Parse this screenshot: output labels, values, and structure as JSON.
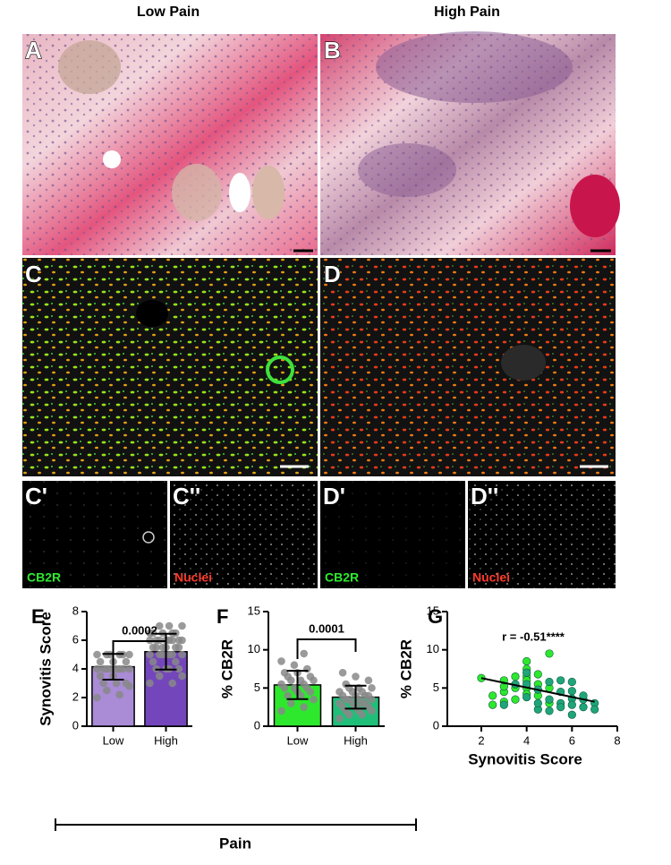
{
  "column_titles": [
    "Low Pain",
    "High Pain"
  ],
  "image_panels": [
    {
      "label": "A"
    },
    {
      "label": "B"
    },
    {
      "label": "C"
    },
    {
      "label": "D"
    },
    {
      "label": "C'",
      "channel": "CB2R"
    },
    {
      "label": "C''",
      "channel": "Nuclei"
    },
    {
      "label": "D'",
      "channel": "CB2R"
    },
    {
      "label": "D''",
      "channel": "Nuclei"
    }
  ],
  "group_label": "Pain",
  "chart_data": [
    {
      "type": "bar",
      "panel": "E",
      "ylabel": "Synovitis Score",
      "categories": [
        "Low",
        "High"
      ],
      "values": [
        4.15,
        5.2
      ],
      "errors": [
        0.9,
        1.25
      ],
      "colors": [
        "#a98bd6",
        "#7446bb"
      ],
      "points": [
        [
          2,
          2.2,
          2.5,
          2.8,
          3,
          3,
          3,
          3.5,
          3.5,
          4,
          4,
          4,
          4,
          4,
          4,
          4,
          4,
          4.5,
          4.5,
          4.5,
          5,
          5,
          5,
          5,
          5,
          5
        ],
        [
          3,
          3,
          3.5,
          3.5,
          4,
          4,
          4,
          4,
          4.5,
          4.5,
          5,
          5,
          5,
          5,
          5,
          5,
          5.5,
          5.5,
          5.5,
          5.5,
          5.5,
          5.5,
          6,
          6,
          6,
          6,
          6,
          6,
          6,
          6,
          6.5,
          6.5,
          6.5,
          6.5,
          6.5,
          7,
          7,
          7
        ]
      ],
      "ylim": [
        0,
        8
      ],
      "yticks": [
        0,
        2,
        4,
        6,
        8
      ],
      "annotation": "0.0002"
    },
    {
      "type": "bar",
      "panel": "F",
      "ylabel": "% CB2R",
      "categories": [
        "Low",
        "High"
      ],
      "values": [
        5.4,
        3.8
      ],
      "errors": [
        1.85,
        1.5
      ],
      "colors": [
        "#2ee82e",
        "#1fbf7a"
      ],
      "points": [
        [
          2,
          2.5,
          3,
          3.5,
          4,
          4,
          4.5,
          4.5,
          5,
          5,
          5,
          5.5,
          5.5,
          6,
          6,
          6,
          6.5,
          6.5,
          7,
          7,
          7.5,
          8,
          8.5,
          9.5
        ],
        [
          1,
          1.5,
          1.5,
          2,
          2,
          2,
          2.5,
          2.5,
          2.5,
          3,
          3,
          3,
          3,
          3.5,
          3.5,
          3.5,
          3.5,
          4,
          4,
          4,
          4,
          4.5,
          4.5,
          4.5,
          5,
          5,
          5,
          5.5,
          6,
          6.5,
          7
        ]
      ],
      "ylim": [
        0,
        15
      ],
      "yticks": [
        0,
        5,
        10,
        15
      ],
      "annotation": "0.0001"
    },
    {
      "type": "scatter",
      "panel": "G",
      "xlabel": "Synovitis Score",
      "ylabel": "% CB2R",
      "series": [
        {
          "color": "#2ee82e",
          "x": [
            2,
            2.5,
            2.5,
            3,
            3,
            3,
            3,
            3.5,
            3.5,
            3.5,
            4,
            4,
            4,
            4,
            4,
            4,
            4.5,
            4.5,
            4.5,
            5,
            5,
            5
          ],
          "y": [
            6.3,
            2.8,
            4,
            3.2,
            4.5,
            5.2,
            6,
            5,
            6.5,
            3.5,
            8.5,
            7.5,
            6.5,
            6,
            5,
            4.2,
            5.5,
            4,
            6.8,
            9.5,
            5,
            3
          ]
        },
        {
          "color": "#1fa57a",
          "x": [
            3,
            3.5,
            4,
            4,
            4,
            4.5,
            4.5,
            4.5,
            5,
            5,
            5,
            5.5,
            5.5,
            5.5,
            5.5,
            6,
            6,
            6,
            6,
            6,
            6.5,
            6.5,
            6.5,
            7,
            7
          ],
          "y": [
            2.8,
            5.5,
            3.8,
            5.5,
            7,
            2.2,
            3,
            4.8,
            3.5,
            5.8,
            2,
            6,
            4.5,
            3,
            2.5,
            5.8,
            4.6,
            3.6,
            2.8,
            1.5,
            3.5,
            2.5,
            4,
            3,
            2.2
          ]
        }
      ],
      "fit": {
        "x": [
          2,
          7
        ],
        "y": [
          6.3,
          3.2
        ]
      },
      "xlim": [
        0.5,
        8
      ],
      "xticks": [
        2,
        4,
        6,
        8
      ],
      "ylim": [
        0,
        15
      ],
      "yticks": [
        0,
        5,
        10,
        15
      ],
      "annotation": "r = -0.51****"
    }
  ]
}
